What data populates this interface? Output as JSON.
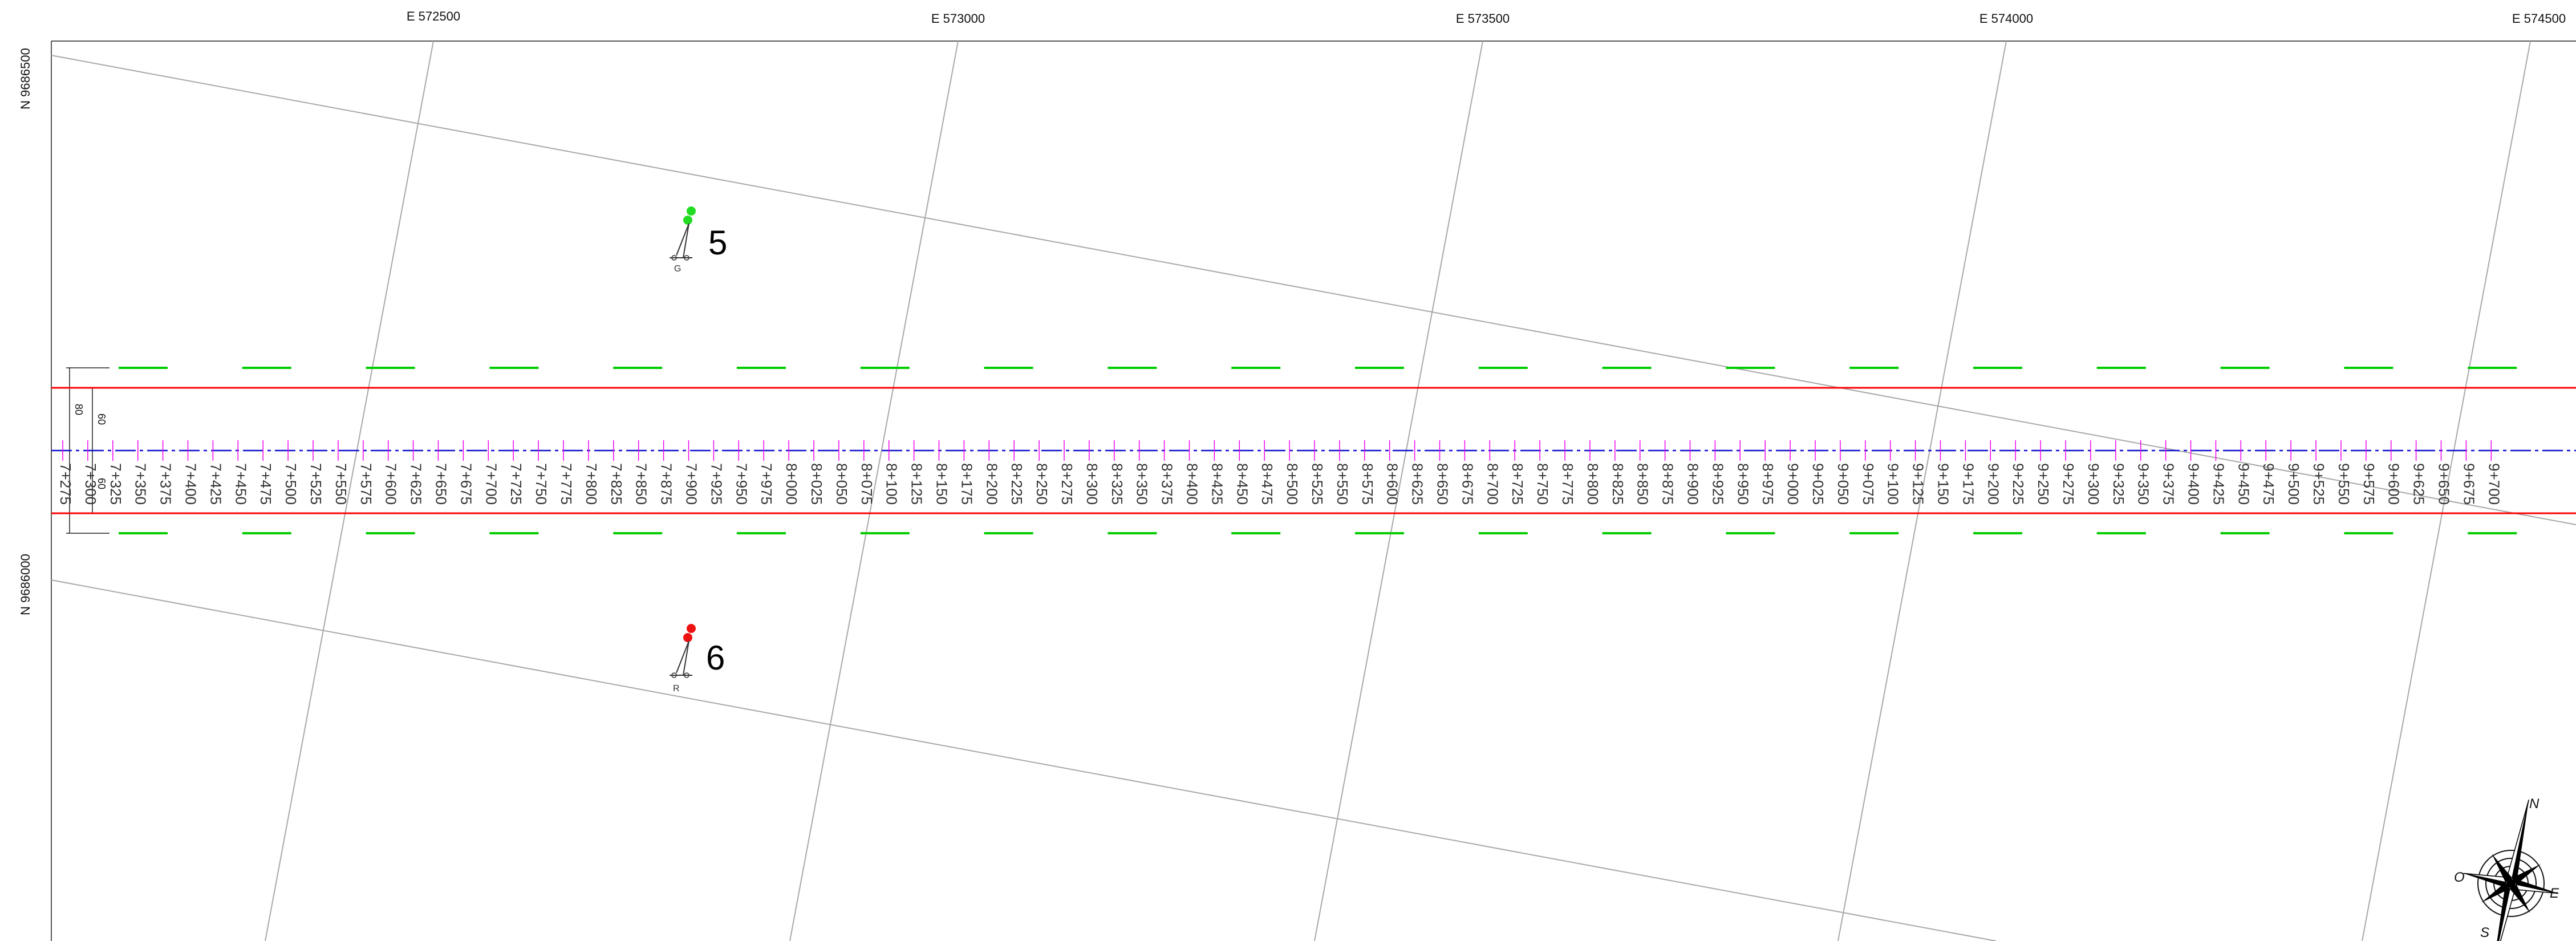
{
  "coordinates": {
    "easting_labels": [
      "E 572500",
      "E 573000",
      "E 573500",
      "E 574000",
      "E 574500"
    ],
    "northing_labels": [
      "N 9686500",
      "N 9686000"
    ]
  },
  "chainage": {
    "labels": [
      "7+275",
      "7+300",
      "7+325",
      "7+350",
      "7+375",
      "7+400",
      "7+425",
      "7+450",
      "7+475",
      "7+500",
      "7+525",
      "7+550",
      "7+575",
      "7+600",
      "7+625",
      "7+650",
      "7+675",
      "7+700",
      "7+725",
      "7+750",
      "7+775",
      "7+800",
      "7+825",
      "7+850",
      "7+875",
      "7+900",
      "7+925",
      "7+950",
      "7+975",
      "8+000",
      "8+025",
      "8+050",
      "8+075",
      "8+100",
      "8+125",
      "8+150",
      "8+175",
      "8+200",
      "8+225",
      "8+250",
      "8+275",
      "8+300",
      "8+325",
      "8+350",
      "8+375",
      "8+400",
      "8+425",
      "8+450",
      "8+475",
      "8+500",
      "8+525",
      "8+550",
      "8+575",
      "8+600",
      "8+625",
      "8+650",
      "8+675",
      "8+700",
      "8+725",
      "8+750",
      "8+775",
      "8+800",
      "8+825",
      "8+850",
      "8+875",
      "8+900",
      "8+925",
      "8+950",
      "8+975",
      "9+000",
      "9+025",
      "9+050",
      "9+075",
      "9+100",
      "9+125",
      "9+150",
      "9+175",
      "9+200",
      "9+225",
      "9+250",
      "9+275",
      "9+300",
      "9+325",
      "9+350",
      "9+375",
      "9+400",
      "9+425",
      "9+450",
      "9+475",
      "9+500",
      "9+525",
      "9+550",
      "9+575",
      "9+600",
      "9+625",
      "9+650",
      "9+675",
      "9+700"
    ]
  },
  "dimensions": {
    "outer": "80",
    "inner": "60",
    "center": "60"
  },
  "signals": [
    {
      "number": "5",
      "letter": "G",
      "lamp_color": "#22dd22"
    },
    {
      "number": "6",
      "letter": "R",
      "lamp_color": "#ee1111"
    }
  ],
  "compass": {
    "north": "N",
    "south": "S",
    "east": "E",
    "west": "O"
  },
  "colors": {
    "rail_edge": "#ff0000",
    "centerline": "#0000cc",
    "station_tick": "#ee00ee",
    "offset_marks": "#00cc00",
    "grid": "#a8a8a8"
  }
}
